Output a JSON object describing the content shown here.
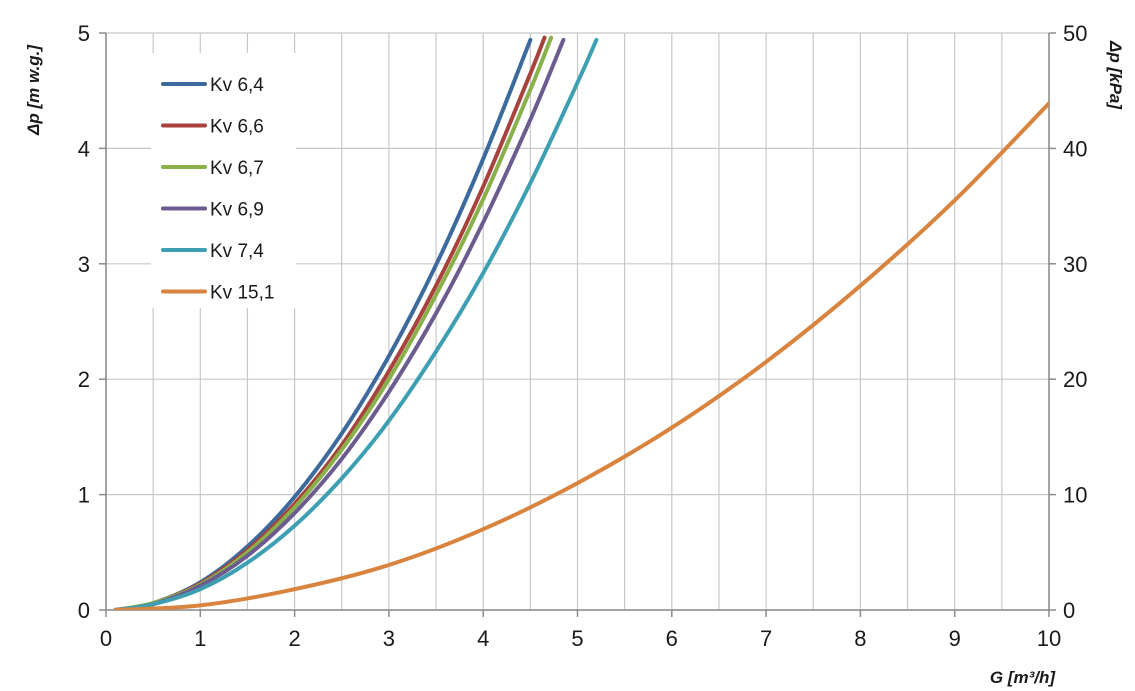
{
  "chart_data": {
    "type": "line",
    "title": "",
    "xlabel": "G [m³/h]",
    "ylabel": "Δp [m w.g.]",
    "ylabel_right": "Δp [kPa]",
    "xlim": [
      0,
      10
    ],
    "ylim": [
      0,
      5
    ],
    "ylim_right": [
      0,
      50
    ],
    "x_ticks": [
      0,
      1,
      2,
      3,
      4,
      5,
      6,
      7,
      8,
      9,
      10
    ],
    "y_ticks": [
      0,
      1,
      2,
      3,
      4,
      5
    ],
    "y_ticks_right": [
      0,
      10,
      20,
      30,
      40,
      50
    ],
    "x_tick_labels": [
      "0",
      "1",
      "2",
      "3",
      "4",
      "5",
      "6",
      "7",
      "8",
      "9",
      "10"
    ],
    "y_tick_labels": [
      "0",
      "1",
      "2",
      "3",
      "4",
      "5"
    ],
    "y_tick_labels_right": [
      "0",
      "10",
      "20",
      "30",
      "40",
      "50"
    ],
    "grid": true,
    "legend_position": "top-left",
    "series": [
      {
        "name": "Kv 6,4",
        "color": "#3d6a9c",
        "x": [
          0.1,
          0.5,
          1,
          1.5,
          2,
          2.5,
          3,
          3.5,
          4,
          4.5
        ],
        "values": [
          0.0,
          0.06,
          0.24,
          0.55,
          0.98,
          1.53,
          2.2,
          2.99,
          3.91,
          4.94
        ]
      },
      {
        "name": "Kv 6,6",
        "color": "#a8423d",
        "x": [
          0.1,
          0.5,
          1,
          1.5,
          2,
          2.5,
          3,
          3.5,
          4,
          4.5,
          4.65
        ],
        "values": [
          0.0,
          0.06,
          0.23,
          0.52,
          0.92,
          1.43,
          2.07,
          2.81,
          3.67,
          4.65,
          4.96
        ]
      },
      {
        "name": "Kv 6,7",
        "color": "#8ab04a",
        "x": [
          0.1,
          0.5,
          1,
          1.5,
          2,
          2.5,
          3,
          3.5,
          4,
          4.5,
          4.72
        ],
        "values": [
          0.0,
          0.06,
          0.22,
          0.5,
          0.89,
          1.39,
          2.0,
          2.73,
          3.56,
          4.51,
          4.96
        ]
      },
      {
        "name": "Kv 6,9",
        "color": "#6c5b8e",
        "x": [
          0.1,
          0.5,
          1,
          1.5,
          2,
          2.5,
          3,
          3.5,
          4,
          4.5,
          4.85
        ],
        "values": [
          0.0,
          0.05,
          0.21,
          0.47,
          0.84,
          1.31,
          1.89,
          2.57,
          3.36,
          4.25,
          4.94
        ]
      },
      {
        "name": "Kv 7,4",
        "color": "#3e9fb2",
        "x": [
          0.1,
          0.5,
          1,
          1.5,
          2,
          2.5,
          3,
          3.5,
          4,
          4.5,
          5,
          5.2
        ],
        "values": [
          0.0,
          0.05,
          0.18,
          0.41,
          0.73,
          1.14,
          1.64,
          2.24,
          2.92,
          3.7,
          4.57,
          4.94
        ]
      },
      {
        "name": "Kv 15,1",
        "color": "#d9843e",
        "x": [
          0.1,
          1,
          2,
          3,
          4,
          5,
          6,
          7,
          8,
          9,
          10
        ],
        "values": [
          0.0,
          0.04,
          0.18,
          0.39,
          0.7,
          1.1,
          1.58,
          2.15,
          2.81,
          3.55,
          4.39
        ]
      }
    ]
  }
}
